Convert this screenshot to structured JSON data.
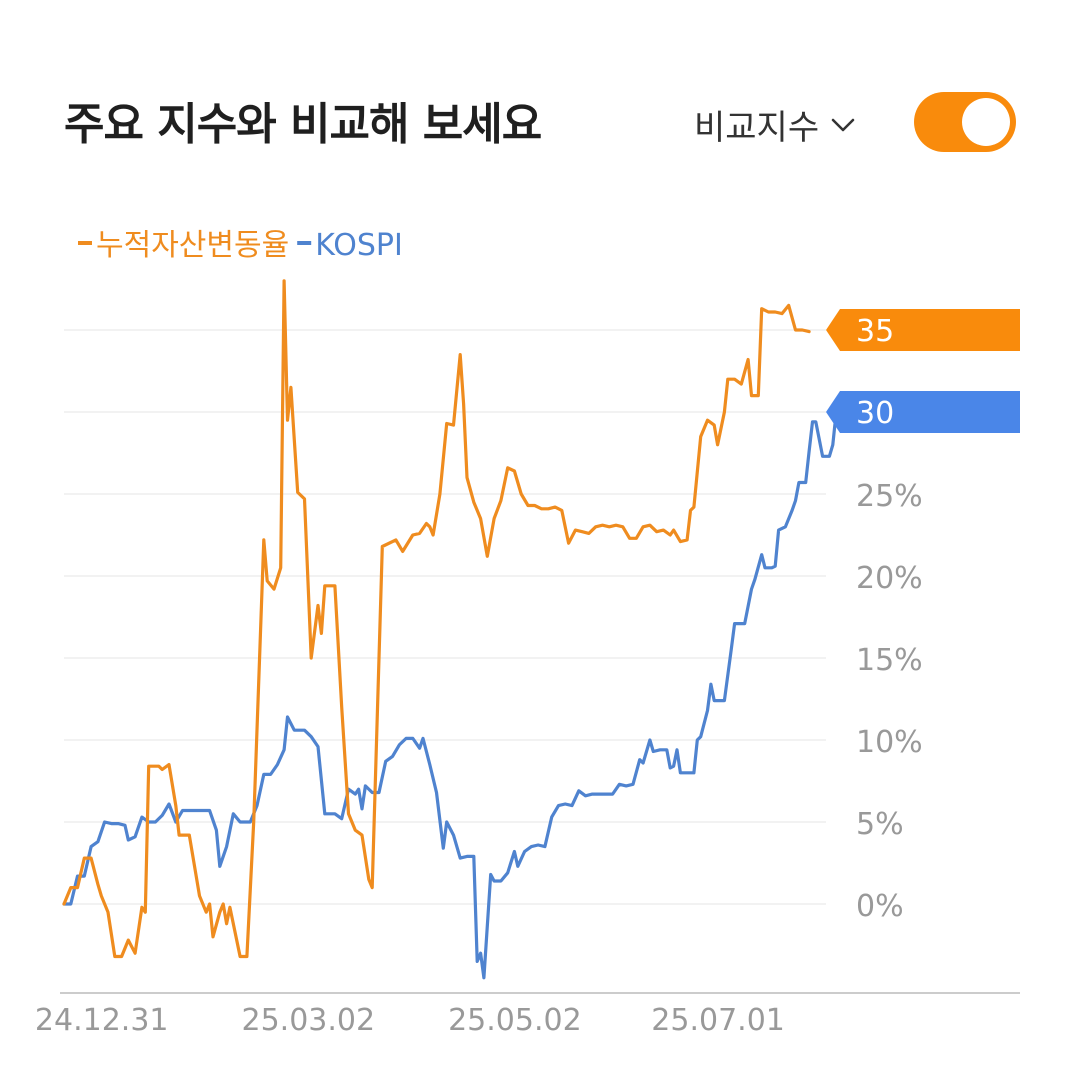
{
  "header": {
    "title": "주요 지수와 비교해 보세요",
    "compare_label": "비교지수"
  },
  "toggle": {
    "on": true,
    "color": "#f98b0c"
  },
  "chart_data": {
    "type": "line",
    "xlim": [
      "2024-12-24",
      "2025-08-06"
    ],
    "x_ticks": [
      {
        "date": "2024-12-31",
        "label": "24.12.31"
      },
      {
        "date": "2025-03-02",
        "label": "25.03.02"
      },
      {
        "date": "2025-05-02",
        "label": "25.05.02"
      },
      {
        "date": "2025-07-01",
        "label": "25.07.01"
      }
    ],
    "ylim": [
      -5,
      40
    ],
    "y_ticks": [
      {
        "value": 0,
        "label": "0%"
      },
      {
        "value": 5,
        "label": "5%"
      },
      {
        "value": 10,
        "label": "10%"
      },
      {
        "value": 15,
        "label": "15%"
      },
      {
        "value": 20,
        "label": "20%"
      },
      {
        "value": 25,
        "label": "25%"
      }
    ],
    "grid": true,
    "legend_position": "top-left",
    "series": [
      {
        "name": "누적자산변동율",
        "color": "#ef8c1f",
        "end_label": "35",
        "end_label_color": "#f98b0c",
        "points": [
          [
            "2024-12-24",
            0.0
          ],
          [
            "2024-12-26",
            1.0
          ],
          [
            "2024-12-28",
            1.0
          ],
          [
            "2024-12-30",
            2.8
          ],
          [
            "2025-01-01",
            2.8
          ],
          [
            "2025-01-03",
            1.2
          ],
          [
            "2025-01-04",
            0.5
          ],
          [
            "2025-01-06",
            -0.5
          ],
          [
            "2025-01-08",
            -3.2
          ],
          [
            "2025-01-10",
            -3.2
          ],
          [
            "2025-01-12",
            -2.2
          ],
          [
            "2025-01-14",
            -3.0
          ],
          [
            "2025-01-16",
            -0.2
          ],
          [
            "2025-01-17",
            -0.5
          ],
          [
            "2025-01-18",
            8.4
          ],
          [
            "2025-01-21",
            8.4
          ],
          [
            "2025-01-22",
            8.2
          ],
          [
            "2025-01-24",
            8.5
          ],
          [
            "2025-01-26",
            6.0
          ],
          [
            "2025-01-27",
            4.2
          ],
          [
            "2025-01-30",
            4.2
          ],
          [
            "2025-02-02",
            0.5
          ],
          [
            "2025-02-04",
            -0.5
          ],
          [
            "2025-02-05",
            0.0
          ],
          [
            "2025-02-06",
            -2.0
          ],
          [
            "2025-02-08",
            -0.5
          ],
          [
            "2025-02-09",
            0.0
          ],
          [
            "2025-02-10",
            -1.2
          ],
          [
            "2025-02-11",
            -0.2
          ],
          [
            "2025-02-14",
            -3.2
          ],
          [
            "2025-02-16",
            -3.2
          ],
          [
            "2025-02-18",
            5.0
          ],
          [
            "2025-02-21",
            22.2
          ],
          [
            "2025-02-22",
            19.7
          ],
          [
            "2025-02-24",
            19.2
          ],
          [
            "2025-02-26",
            20.5
          ],
          [
            "2025-02-27",
            38.0
          ],
          [
            "2025-02-28",
            29.5
          ],
          [
            "2025-03-01",
            31.5
          ],
          [
            "2025-03-03",
            25.1
          ],
          [
            "2025-03-05",
            24.7
          ],
          [
            "2025-03-07",
            15.0
          ],
          [
            "2025-03-09",
            18.2
          ],
          [
            "2025-03-10",
            16.5
          ],
          [
            "2025-03-11",
            19.4
          ],
          [
            "2025-03-14",
            19.4
          ],
          [
            "2025-03-16",
            12.0
          ],
          [
            "2025-03-18",
            5.5
          ],
          [
            "2025-03-20",
            4.5
          ],
          [
            "2025-03-22",
            4.2
          ],
          [
            "2025-03-24",
            1.5
          ],
          [
            "2025-03-25",
            1.0
          ],
          [
            "2025-03-28",
            21.8
          ],
          [
            "2025-04-01",
            22.2
          ],
          [
            "2025-04-03",
            21.5
          ],
          [
            "2025-04-06",
            22.5
          ],
          [
            "2025-04-08",
            22.6
          ],
          [
            "2025-04-10",
            23.2
          ],
          [
            "2025-04-11",
            23.0
          ],
          [
            "2025-04-12",
            22.5
          ],
          [
            "2025-04-14",
            25.0
          ],
          [
            "2025-04-16",
            29.3
          ],
          [
            "2025-04-18",
            29.2
          ],
          [
            "2025-04-20",
            33.5
          ],
          [
            "2025-04-21",
            30.5
          ],
          [
            "2025-04-22",
            26.0
          ],
          [
            "2025-04-24",
            24.5
          ],
          [
            "2025-04-26",
            23.5
          ],
          [
            "2025-04-28",
            21.2
          ],
          [
            "2025-04-30",
            23.5
          ],
          [
            "2025-05-02",
            24.6
          ],
          [
            "2025-05-04",
            26.6
          ],
          [
            "2025-05-06",
            26.4
          ],
          [
            "2025-05-08",
            25.0
          ],
          [
            "2025-05-10",
            24.3
          ],
          [
            "2025-05-12",
            24.3
          ],
          [
            "2025-05-14",
            24.1
          ],
          [
            "2025-05-16",
            24.1
          ],
          [
            "2025-05-18",
            24.2
          ],
          [
            "2025-05-20",
            24.0
          ],
          [
            "2025-05-22",
            22.0
          ],
          [
            "2025-05-24",
            22.8
          ],
          [
            "2025-05-26",
            22.7
          ],
          [
            "2025-05-28",
            22.6
          ],
          [
            "2025-05-30",
            23.0
          ],
          [
            "2025-06-01",
            23.1
          ],
          [
            "2025-06-03",
            23.0
          ],
          [
            "2025-06-05",
            23.1
          ],
          [
            "2025-06-07",
            23.0
          ],
          [
            "2025-06-09",
            22.3
          ],
          [
            "2025-06-11",
            22.3
          ],
          [
            "2025-06-13",
            23.0
          ],
          [
            "2025-06-15",
            23.1
          ],
          [
            "2025-06-17",
            22.7
          ],
          [
            "2025-06-19",
            22.8
          ],
          [
            "2025-06-21",
            22.5
          ],
          [
            "2025-06-22",
            22.8
          ],
          [
            "2025-06-24",
            22.1
          ],
          [
            "2025-06-26",
            22.2
          ],
          [
            "2025-06-27",
            24.0
          ],
          [
            "2025-06-28",
            24.2
          ],
          [
            "2025-06-30",
            28.5
          ],
          [
            "2025-07-02",
            29.5
          ],
          [
            "2025-07-04",
            29.2
          ],
          [
            "2025-07-05",
            28.0
          ],
          [
            "2025-07-07",
            30.0
          ],
          [
            "2025-07-08",
            32.0
          ],
          [
            "2025-07-10",
            32.0
          ],
          [
            "2025-07-12",
            31.7
          ],
          [
            "2025-07-14",
            33.2
          ],
          [
            "2025-07-15",
            31.0
          ],
          [
            "2025-07-17",
            31.0
          ],
          [
            "2025-07-18",
            36.3
          ],
          [
            "2025-07-20",
            36.1
          ],
          [
            "2025-07-22",
            36.1
          ],
          [
            "2025-07-24",
            36.0
          ],
          [
            "2025-07-26",
            36.5
          ],
          [
            "2025-07-28",
            35.0
          ],
          [
            "2025-07-30",
            35.0
          ],
          [
            "2025-08-01",
            34.9
          ]
        ]
      },
      {
        "name": "KOSPI",
        "color": "#4f83cf",
        "end_label": "30",
        "end_label_color": "#4a86e8",
        "points": [
          [
            "2024-12-24",
            0.0
          ],
          [
            "2024-12-26",
            0.0
          ],
          [
            "2024-12-28",
            1.7
          ],
          [
            "2024-12-30",
            1.7
          ],
          [
            "2025-01-01",
            3.5
          ],
          [
            "2025-01-03",
            3.8
          ],
          [
            "2025-01-05",
            5.0
          ],
          [
            "2025-01-07",
            4.9
          ],
          [
            "2025-01-09",
            4.9
          ],
          [
            "2025-01-11",
            4.8
          ],
          [
            "2025-01-12",
            3.9
          ],
          [
            "2025-01-14",
            4.1
          ],
          [
            "2025-01-16",
            5.3
          ],
          [
            "2025-01-18",
            5.0
          ],
          [
            "2025-01-20",
            5.0
          ],
          [
            "2025-01-22",
            5.4
          ],
          [
            "2025-01-24",
            6.1
          ],
          [
            "2025-01-26",
            5.0
          ],
          [
            "2025-01-28",
            5.7
          ],
          [
            "2025-01-31",
            5.7
          ],
          [
            "2025-02-03",
            5.7
          ],
          [
            "2025-02-05",
            5.7
          ],
          [
            "2025-02-07",
            4.5
          ],
          [
            "2025-02-08",
            2.3
          ],
          [
            "2025-02-10",
            3.5
          ],
          [
            "2025-02-12",
            5.5
          ],
          [
            "2025-02-14",
            5.0
          ],
          [
            "2025-02-17",
            5.0
          ],
          [
            "2025-02-19",
            6.0
          ],
          [
            "2025-02-21",
            7.9
          ],
          [
            "2025-02-23",
            7.9
          ],
          [
            "2025-02-25",
            8.5
          ],
          [
            "2025-02-27",
            9.4
          ],
          [
            "2025-02-28",
            11.4
          ],
          [
            "2025-03-02",
            10.6
          ],
          [
            "2025-03-05",
            10.6
          ],
          [
            "2025-03-07",
            10.2
          ],
          [
            "2025-03-09",
            9.6
          ],
          [
            "2025-03-11",
            5.5
          ],
          [
            "2025-03-14",
            5.5
          ],
          [
            "2025-03-16",
            5.2
          ],
          [
            "2025-03-18",
            7.0
          ],
          [
            "2025-03-20",
            6.7
          ],
          [
            "2025-03-21",
            7.0
          ],
          [
            "2025-03-22",
            5.8
          ],
          [
            "2025-03-23",
            7.2
          ],
          [
            "2025-03-25",
            6.8
          ],
          [
            "2025-03-27",
            6.8
          ],
          [
            "2025-03-29",
            8.7
          ],
          [
            "2025-03-31",
            9.0
          ],
          [
            "2025-04-02",
            9.7
          ],
          [
            "2025-04-04",
            10.1
          ],
          [
            "2025-04-06",
            10.1
          ],
          [
            "2025-04-08",
            9.5
          ],
          [
            "2025-04-09",
            10.1
          ],
          [
            "2025-04-11",
            8.5
          ],
          [
            "2025-04-13",
            6.8
          ],
          [
            "2025-04-15",
            3.4
          ],
          [
            "2025-04-16",
            5.0
          ],
          [
            "2025-04-18",
            4.2
          ],
          [
            "2025-04-20",
            2.8
          ],
          [
            "2025-04-22",
            2.9
          ],
          [
            "2025-04-24",
            2.9
          ],
          [
            "2025-04-25",
            -3.5
          ],
          [
            "2025-04-26",
            -3.0
          ],
          [
            "2025-04-27",
            -4.5
          ],
          [
            "2025-04-29",
            1.8
          ],
          [
            "2025-04-30",
            1.4
          ],
          [
            "2025-05-02",
            1.4
          ],
          [
            "2025-05-04",
            1.9
          ],
          [
            "2025-05-06",
            3.2
          ],
          [
            "2025-05-07",
            2.3
          ],
          [
            "2025-05-09",
            3.2
          ],
          [
            "2025-05-11",
            3.5
          ],
          [
            "2025-05-13",
            3.6
          ],
          [
            "2025-05-15",
            3.5
          ],
          [
            "2025-05-17",
            5.3
          ],
          [
            "2025-05-19",
            6.0
          ],
          [
            "2025-05-21",
            6.1
          ],
          [
            "2025-05-23",
            6.0
          ],
          [
            "2025-05-25",
            6.9
          ],
          [
            "2025-05-27",
            6.6
          ],
          [
            "2025-05-29",
            6.7
          ],
          [
            "2025-05-31",
            6.7
          ],
          [
            "2025-06-02",
            6.7
          ],
          [
            "2025-06-04",
            6.7
          ],
          [
            "2025-06-06",
            7.3
          ],
          [
            "2025-06-08",
            7.2
          ],
          [
            "2025-06-10",
            7.3
          ],
          [
            "2025-06-12",
            8.8
          ],
          [
            "2025-06-13",
            8.6
          ],
          [
            "2025-06-15",
            10.0
          ],
          [
            "2025-06-16",
            9.3
          ],
          [
            "2025-06-18",
            9.4
          ],
          [
            "2025-06-20",
            9.4
          ],
          [
            "2025-06-21",
            8.3
          ],
          [
            "2025-06-22",
            8.4
          ],
          [
            "2025-06-23",
            9.4
          ],
          [
            "2025-06-24",
            8.0
          ],
          [
            "2025-06-26",
            8.0
          ],
          [
            "2025-06-28",
            8.0
          ],
          [
            "2025-06-29",
            10.0
          ],
          [
            "2025-06-30",
            10.2
          ],
          [
            "2025-07-02",
            11.8
          ],
          [
            "2025-07-03",
            13.4
          ],
          [
            "2025-07-04",
            12.4
          ],
          [
            "2025-07-06",
            12.4
          ],
          [
            "2025-07-07",
            12.4
          ],
          [
            "2025-07-09",
            15.5
          ],
          [
            "2025-07-10",
            17.1
          ],
          [
            "2025-07-12",
            17.1
          ],
          [
            "2025-07-13",
            17.1
          ],
          [
            "2025-07-15",
            19.2
          ],
          [
            "2025-07-16",
            19.8
          ],
          [
            "2025-07-18",
            21.3
          ],
          [
            "2025-07-19",
            20.5
          ],
          [
            "2025-07-21",
            20.5
          ],
          [
            "2025-07-22",
            20.6
          ],
          [
            "2025-07-23",
            22.8
          ],
          [
            "2025-07-25",
            23.0
          ],
          [
            "2025-07-27",
            24.0
          ],
          [
            "2025-07-28",
            24.6
          ],
          [
            "2025-07-29",
            25.7
          ],
          [
            "2025-07-31",
            25.7
          ],
          [
            "2025-08-01",
            27.6
          ],
          [
            "2025-08-02",
            29.4
          ],
          [
            "2025-08-03",
            29.4
          ],
          [
            "2025-08-05",
            27.3
          ],
          [
            "2025-08-06",
            27.3
          ],
          [
            "2025-08-07",
            27.3
          ],
          [
            "2025-08-08",
            28.0
          ],
          [
            "2025-08-09",
            30.0
          ]
        ]
      }
    ]
  }
}
